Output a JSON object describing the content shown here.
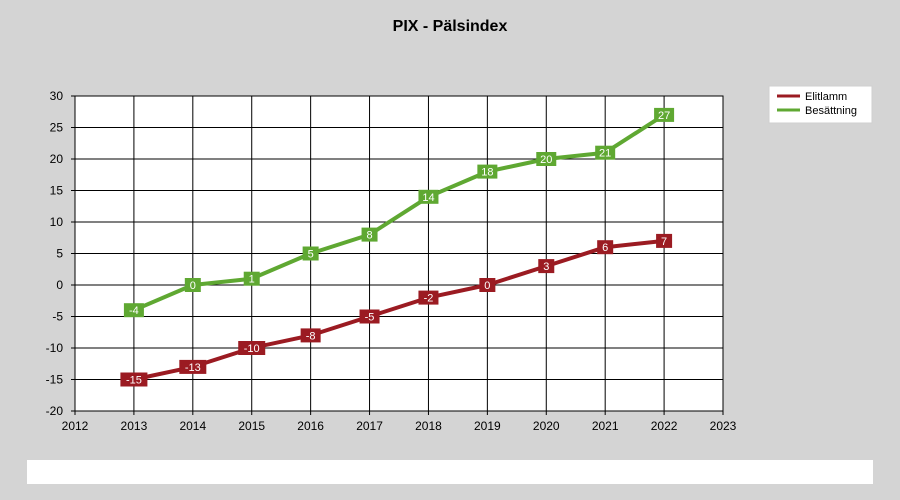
{
  "chart_data": {
    "type": "line",
    "title": "PIX - Pälsindex",
    "xlabel": "",
    "ylabel": "",
    "x": [
      2013,
      2014,
      2015,
      2016,
      2017,
      2018,
      2019,
      2020,
      2021,
      2022
    ],
    "xlim": [
      2012,
      2023
    ],
    "ylim": [
      -20,
      30
    ],
    "x_ticks": [
      "2012",
      "2013",
      "2014",
      "2015",
      "2016",
      "2017",
      "2018",
      "2019",
      "2020",
      "2021",
      "2022",
      "2023"
    ],
    "y_ticks": [
      "30",
      "25",
      "20",
      "15",
      "10",
      "5",
      "0",
      "-5",
      "-10",
      "-15",
      "-20"
    ],
    "grid": true,
    "legend_position": "top-right",
    "series": [
      {
        "name": "Elitlamm",
        "color": "#9b1b22",
        "values": [
          -15,
          -13,
          -10,
          -8,
          -5,
          -2,
          0,
          3,
          6,
          7
        ]
      },
      {
        "name": "Besättning",
        "color": "#5fa832",
        "values": [
          -4,
          0,
          1,
          5,
          8,
          14,
          18,
          20,
          21,
          27
        ]
      }
    ]
  }
}
